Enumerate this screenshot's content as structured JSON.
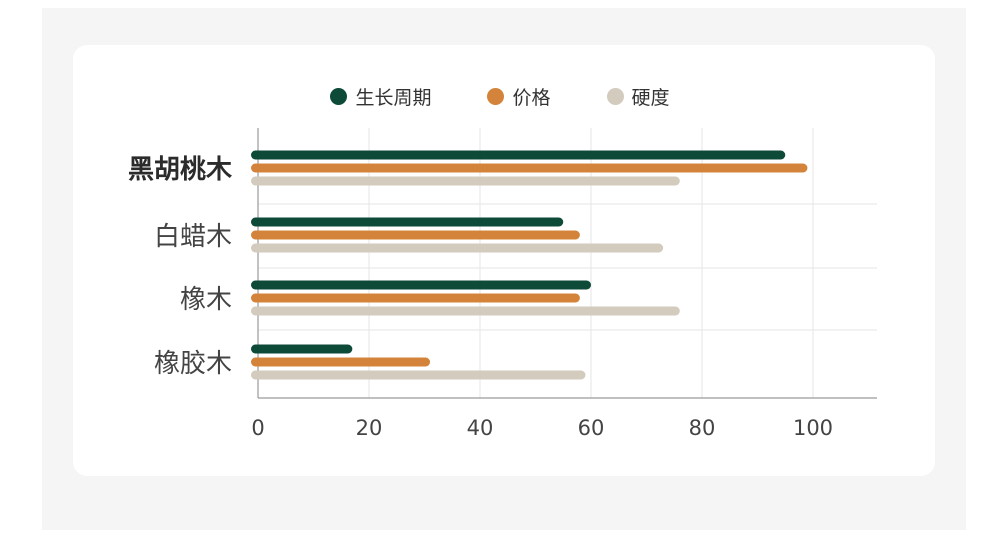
{
  "legend": [
    {
      "label": "生长周期",
      "color": "#0d4a37"
    },
    {
      "label": "价格",
      "color": "#d4843a"
    },
    {
      "label": "硬度",
      "color": "#d3cbbd"
    }
  ],
  "chart_data": {
    "type": "bar",
    "orientation": "horizontal",
    "categories": [
      "黑胡桃木",
      "白蜡木",
      "橡木",
      "橡胶木"
    ],
    "highlighted_category": "黑胡桃木",
    "series": [
      {
        "name": "生长周期",
        "color": "#0d4a37",
        "values": [
          95,
          55,
          60,
          17
        ]
      },
      {
        "name": "价格",
        "color": "#d4843a",
        "values": [
          99,
          58,
          58,
          31
        ]
      },
      {
        "name": "硬度",
        "color": "#d3cbbd",
        "values": [
          76,
          73,
          76,
          59
        ]
      }
    ],
    "xlim": [
      0,
      110
    ],
    "xticks": [
      0,
      20,
      40,
      60,
      80,
      100
    ],
    "tick_labels": [
      "0",
      "20",
      "40",
      "60",
      "80",
      "100"
    ],
    "grid": true,
    "legend_position": "top-center"
  }
}
